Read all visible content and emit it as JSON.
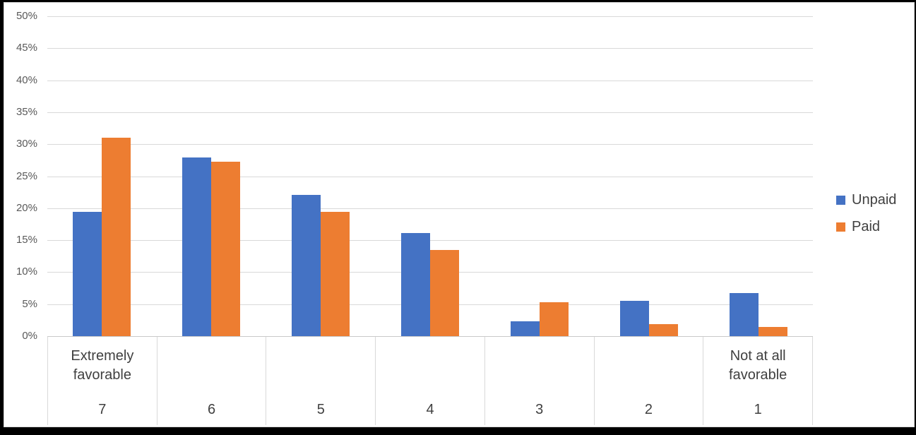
{
  "chart_data": {
    "type": "bar",
    "title": "",
    "categories": [
      {
        "value": "7",
        "label": "Extremely favorable"
      },
      {
        "value": "6",
        "label": ""
      },
      {
        "value": "5",
        "label": ""
      },
      {
        "value": "4",
        "label": ""
      },
      {
        "value": "3",
        "label": ""
      },
      {
        "value": "2",
        "label": ""
      },
      {
        "value": "1",
        "label": "Not at all favorable"
      }
    ],
    "series": [
      {
        "name": "Unpaid",
        "color": "#4472C4",
        "values": [
          19.4,
          27.9,
          22.1,
          16.1,
          2.3,
          5.5,
          6.7
        ]
      },
      {
        "name": "Paid",
        "color": "#ED7D31",
        "values": [
          31.0,
          27.3,
          19.4,
          13.5,
          5.3,
          1.9,
          1.4
        ]
      }
    ],
    "y_axis": {
      "min": 0,
      "max": 50,
      "step": 5,
      "tick_labels": [
        "0%",
        "5%",
        "10%",
        "15%",
        "20%",
        "25%",
        "30%",
        "35%",
        "40%",
        "45%",
        "50%"
      ],
      "unit": "%"
    },
    "legend": {
      "position": "right",
      "entries": [
        "Unpaid",
        "Paid"
      ]
    },
    "grid": true,
    "colors": {
      "gridline": "#d9d9d9",
      "axis_line": "#c9c9c9",
      "axis_text": "#595959",
      "category_text": "#404040",
      "background": "#ffffff",
      "frame_border": "#000000"
    }
  }
}
